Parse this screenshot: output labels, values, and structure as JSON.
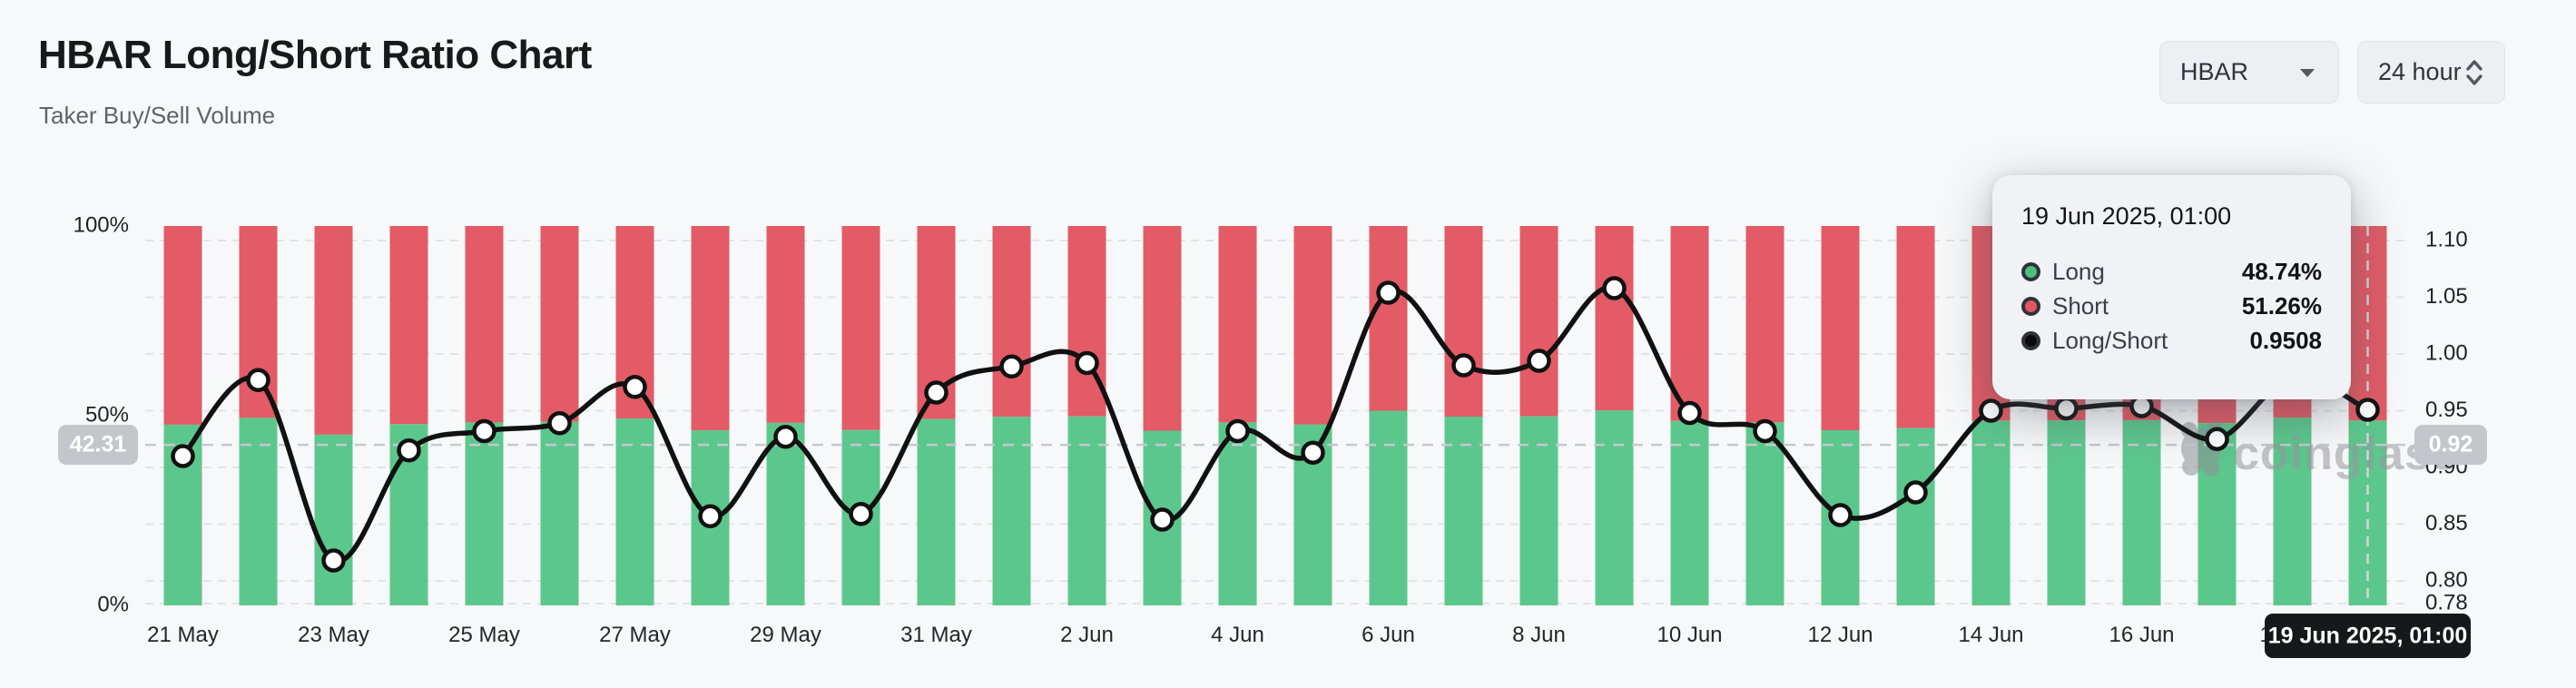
{
  "header": {
    "title": "HBAR Long/Short Ratio Chart",
    "subtitle": "Taker Buy/Sell Volume"
  },
  "controls": {
    "symbol": {
      "label": "HBAR",
      "icon": "caret-down-icon"
    },
    "interval": {
      "label": "24 hour",
      "icon": "sort-chevrons-icon"
    }
  },
  "watermark": {
    "label": "coinglass"
  },
  "colors": {
    "long": "#5CC78D",
    "short": "#E25B66",
    "line": "#111111",
    "background": "#F7F8F9",
    "gridline": "#E3E4E7",
    "crosshair": "#C6C8CD",
    "crosshair_badge": "#C4C6CB",
    "axis_text": "#1E2126",
    "date_pill_bg": "#17181A"
  },
  "tooltip": {
    "title": "19 Jun 2025, 01:00",
    "rows": [
      {
        "label": "Long",
        "value": "48.74%",
        "marker_color": "#4DBE83"
      },
      {
        "label": "Short",
        "value": "51.26%",
        "marker_color": "#E25564"
      },
      {
        "label": "Long/Short",
        "value": "0.9508",
        "marker_color": "#0B0B0C"
      }
    ]
  },
  "crosshair": {
    "x_index": 29,
    "y_left_value": 42.31,
    "left_badge": "42.31",
    "right_badge": "0.92",
    "date_label": "19 Jun 2025, 01:00"
  },
  "chart_data": {
    "type": "bar",
    "subtype": "100%-stacked bars with overlaid line (long/short ratio)",
    "title": "HBAR Long/Short Ratio Chart",
    "categories": [
      "21 May",
      "22 May",
      "23 May",
      "24 May",
      "25 May",
      "26 May",
      "27 May",
      "28 May",
      "29 May",
      "30 May",
      "31 May",
      "1 Jun",
      "2 Jun",
      "3 Jun",
      "4 Jun",
      "5 Jun",
      "6 Jun",
      "7 Jun",
      "8 Jun",
      "9 Jun",
      "10 Jun",
      "11 Jun",
      "12 Jun",
      "13 Jun",
      "14 Jun",
      "15 Jun",
      "16 Jun",
      "17 Jun",
      "18 Jun",
      "19 Jun"
    ],
    "x_axis_labels_every": 2,
    "series": [
      {
        "name": "Long",
        "type": "bar",
        "stack": "volume",
        "unit": "%",
        "color": "#5CC78D",
        "values": [
          47.64,
          49.42,
          45.0,
          47.78,
          48.24,
          48.43,
          49.26,
          46.15,
          48.11,
          46.21,
          49.14,
          49.72,
          49.8,
          46.06,
          48.24,
          47.73,
          51.31,
          49.75,
          49.85,
          51.41,
          48.67,
          48.24,
          46.18,
          46.75,
          48.72,
          48.77,
          48.82,
          48.05,
          49.49,
          48.74
        ]
      },
      {
        "name": "Short",
        "type": "bar",
        "stack": "volume",
        "unit": "%",
        "color": "#E25B66",
        "values": [
          52.36,
          50.58,
          55.0,
          52.22,
          51.76,
          51.57,
          50.74,
          53.85,
          51.89,
          53.79,
          50.86,
          50.28,
          50.2,
          53.94,
          51.76,
          52.27,
          48.69,
          50.25,
          50.15,
          48.59,
          51.33,
          51.76,
          53.82,
          53.25,
          51.28,
          51.23,
          51.18,
          51.95,
          50.51,
          51.26
        ]
      },
      {
        "name": "Long/Short",
        "type": "line",
        "axis": "right",
        "color": "#111111",
        "values": [
          0.91,
          0.977,
          0.818,
          0.915,
          0.932,
          0.939,
          0.971,
          0.857,
          0.927,
          0.859,
          0.966,
          0.989,
          0.992,
          0.854,
          0.932,
          0.913,
          1.054,
          0.99,
          0.994,
          1.058,
          0.948,
          0.932,
          0.858,
          0.878,
          0.95,
          0.952,
          0.954,
          0.925,
          0.98,
          0.9508
        ]
      }
    ],
    "left_axis": {
      "ticks": [
        "100%",
        "50%",
        "0%"
      ],
      "min": 0,
      "max": 100
    },
    "right_axis": {
      "ticks": [
        "1.10",
        "1.05",
        "1.00",
        "0.95",
        "0.90",
        "0.85",
        "0.80",
        "0.78"
      ],
      "min": 0.778,
      "max": 1.113
    },
    "grid": "dashed horizontal lines at right-axis ticks",
    "legend_position": "none (legend shown inside hover tooltip)"
  }
}
